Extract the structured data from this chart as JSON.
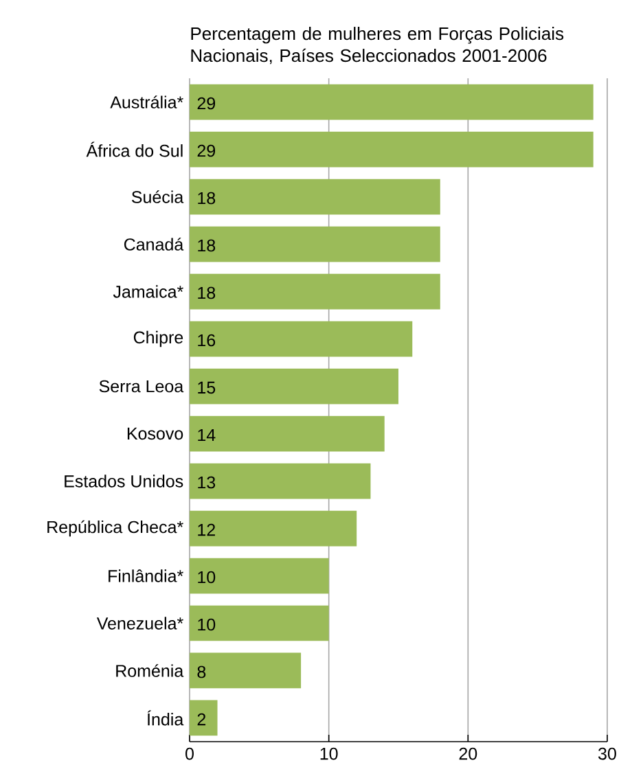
{
  "chart_data": {
    "type": "bar",
    "orientation": "horizontal",
    "title": "Percentagem de mulheres em Forças Policiais Nacionais, Países Seleccionados 2001-2006",
    "categories": [
      "Austrália*",
      "África do Sul",
      "Suécia",
      "Canadá",
      "Jamaica*",
      "Chipre",
      "Serra Leoa",
      "Kosovo",
      "Estados Unidos",
      "República Checa*",
      "Finlândia*",
      "Venezuela*",
      "Roménia",
      "Índia"
    ],
    "values": [
      29,
      29,
      18,
      18,
      18,
      16,
      15,
      14,
      13,
      12,
      10,
      10,
      8,
      2
    ],
    "color": "#9bbb59",
    "xlim": [
      0,
      30
    ],
    "xticks": [
      0,
      10,
      20,
      30
    ],
    "grid": "x",
    "data_labels": true
  }
}
